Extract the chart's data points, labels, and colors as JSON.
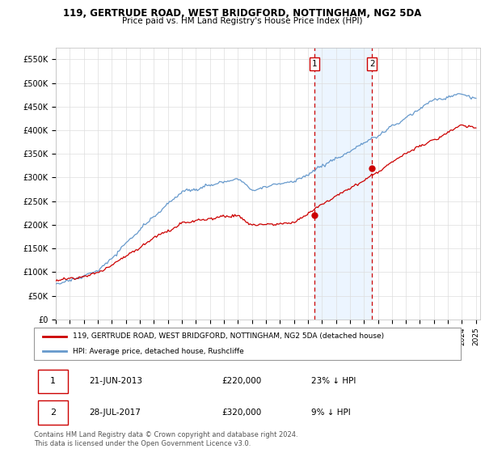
{
  "title": "119, GERTRUDE ROAD, WEST BRIDGFORD, NOTTINGHAM, NG2 5DA",
  "subtitle": "Price paid vs. HM Land Registry's House Price Index (HPI)",
  "ylabel_ticks": [
    "£0",
    "£50K",
    "£100K",
    "£150K",
    "£200K",
    "£250K",
    "£300K",
    "£350K",
    "£400K",
    "£450K",
    "£500K",
    "£550K"
  ],
  "ytick_vals": [
    0,
    50000,
    100000,
    150000,
    200000,
    250000,
    300000,
    350000,
    400000,
    450000,
    500000,
    550000
  ],
  "ylim": [
    0,
    575000
  ],
  "xlim_start": 1995.0,
  "xlim_end": 2025.3,
  "transaction1": {
    "date_num": 2013.47,
    "price": 220000,
    "label": "1",
    "date_str": "21-JUN-2013",
    "pct": "23% ↓ HPI"
  },
  "transaction2": {
    "date_num": 2017.57,
    "price": 320000,
    "label": "2",
    "date_str": "28-JUL-2017",
    "pct": "9% ↓ HPI"
  },
  "legend_line1": "119, GERTRUDE ROAD, WEST BRIDGFORD, NOTTINGHAM, NG2 5DA (detached house)",
  "legend_line2": "HPI: Average price, detached house, Rushcliffe",
  "footnote": "Contains HM Land Registry data © Crown copyright and database right 2024.\nThis data is licensed under the Open Government Licence v3.0.",
  "table_row1": [
    "1",
    "21-JUN-2013",
    "£220,000",
    "23% ↓ HPI"
  ],
  "table_row2": [
    "2",
    "28-JUL-2017",
    "£320,000",
    "9% ↓ HPI"
  ],
  "hpi_color": "#6699cc",
  "price_color": "#cc0000",
  "shading_color": "#ddeeff",
  "grid_color": "#dddddd"
}
